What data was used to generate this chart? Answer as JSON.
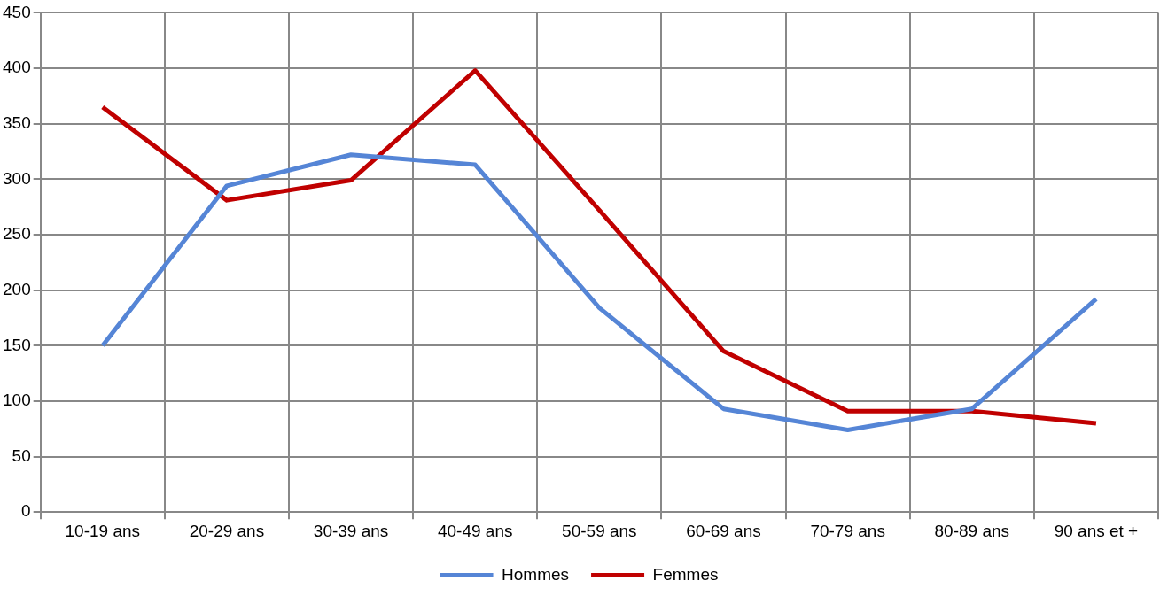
{
  "chart_data": {
    "type": "line",
    "categories": [
      "10-19 ans",
      "20-29 ans",
      "30-39 ans",
      "40-49 ans",
      "50-59 ans",
      "60-69 ans",
      "70-79 ans",
      "80-89 ans",
      "90 ans et +"
    ],
    "series": [
      {
        "name": "Hommes",
        "color": "#5585d6",
        "values": [
          150,
          294,
          322,
          313,
          184,
          93,
          74,
          93,
          192
        ]
      },
      {
        "name": "Femmes",
        "color": "#c00000",
        "values": [
          365,
          281,
          299,
          398,
          272,
          145,
          91,
          91,
          80
        ]
      }
    ],
    "ylim": [
      0,
      450
    ],
    "yticks": [
      0,
      50,
      100,
      150,
      200,
      250,
      300,
      350,
      400,
      450
    ],
    "grid": true,
    "legend": "bottom",
    "marker": "none",
    "line_style": "solid"
  }
}
